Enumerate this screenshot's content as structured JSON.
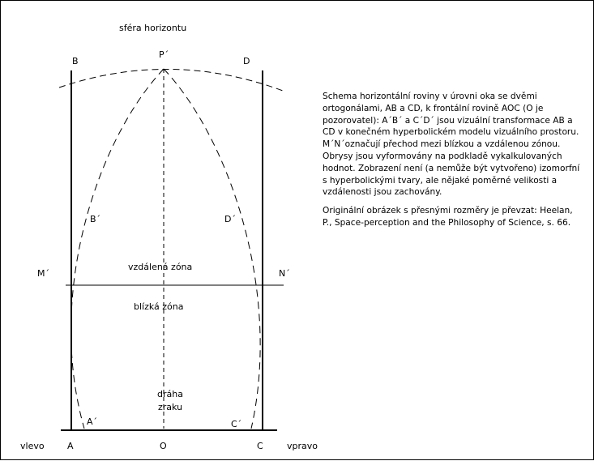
{
  "diagram": {
    "top_label": "sféra horizontu",
    "points": {
      "B": "B",
      "P_prime": "P´",
      "D": "D",
      "B_prime": "B´",
      "D_prime": "D´",
      "M_prime": "M´",
      "N_prime": "N´",
      "A_prime": "A´",
      "C_prime": "C´",
      "A": "A",
      "O": "O",
      "C": "C"
    },
    "far_zone": "vzdálená zóna",
    "near_zone": "blízká zóna",
    "line_of_sight": [
      "dráha",
      "zraku"
    ],
    "left_label": "vlevo",
    "right_label": "vpravo"
  },
  "caption": {
    "paragraph1": "Schema horizontální roviny v úrovni oka se dvěmi ortogonálami, AB a CD, k frontální rovině AOC (O je pozorovatel): A´B´ a C´D´ jsou vizuální transformace AB a CD v konečném hyperbolickém modelu vizuálního prostoru. M´N´označují přechod mezi blízkou a vzdálenou zónou. Obrysy jsou vyformovány na podkladě vykalkulovaných hodnot. Zobrazení není (a nemůže být vytvořeno) izomorfní s hyperbolickými tvary, ale nějaké poměrné velikosti a vzdálenosti jsou zachovány.",
    "paragraph2": "Originální obrázek s přesnými rozměry je převzat: Heelan, P., Space-perception and the Philosophy of Science, s. 66."
  }
}
